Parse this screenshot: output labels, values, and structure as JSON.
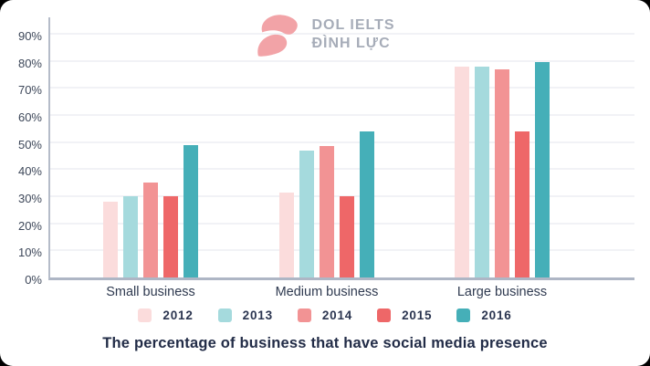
{
  "logo": {
    "line1": "DOL IELTS",
    "line2": "ĐÌNH LỰC",
    "mark_color": "#f2a3a7",
    "text_color": "#a6acb8"
  },
  "title": "The percentage of business that have social media presence",
  "chart_data": {
    "type": "bar",
    "categories": [
      "Small business",
      "Medium business",
      "Large business"
    ],
    "series": [
      {
        "name": "2012",
        "color": "#fbdcdc",
        "values": [
          28,
          31.5,
          78
        ]
      },
      {
        "name": "2013",
        "color": "#a5dadd",
        "values": [
          30,
          47,
          78
        ]
      },
      {
        "name": "2014",
        "color": "#f29394",
        "values": [
          35,
          48.5,
          77
        ]
      },
      {
        "name": "2015",
        "color": "#ee6768",
        "values": [
          30,
          30,
          54
        ]
      },
      {
        "name": "2016",
        "color": "#45afb8",
        "values": [
          49,
          54,
          79.5
        ]
      }
    ],
    "y_tick_labels": [
      "0%",
      "10%",
      "20%",
      "30%",
      "40%",
      "50%",
      "60%",
      "70%",
      "80%",
      "90%"
    ],
    "y_tick_values": [
      0,
      10,
      20,
      30,
      40,
      50,
      60,
      70,
      80,
      90
    ],
    "ylim": [
      0,
      97
    ],
    "grid": true,
    "legend_position": "bottom",
    "xlabel": "",
    "ylabel": ""
  },
  "colors": {
    "gridline": "#f1f2f6",
    "axis": "#b2bac8",
    "tick_label": "#3d4759",
    "category_label": "#2f3a50",
    "legend_label": "#2b3550",
    "title": "#222c47"
  }
}
